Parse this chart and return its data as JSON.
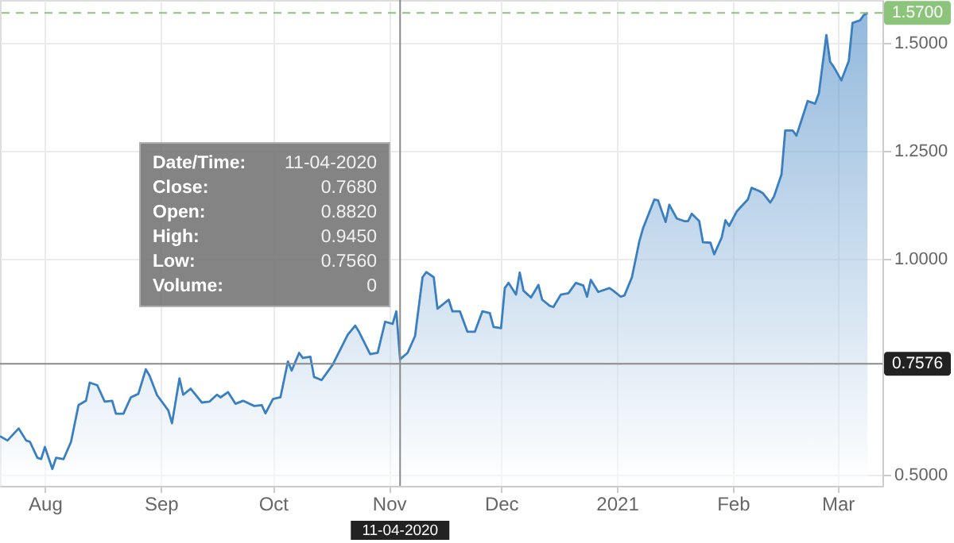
{
  "chart_data": {
    "type": "area",
    "x": [
      "2020-07-20",
      "2020-07-22",
      "2020-07-25",
      "2020-07-27",
      "2020-07-28",
      "2020-07-30",
      "2020-07-31",
      "2020-08-01",
      "2020-08-03",
      "2020-08-04",
      "2020-08-06",
      "2020-08-08",
      "2020-08-10",
      "2020-08-12",
      "2020-08-13",
      "2020-08-15",
      "2020-08-17",
      "2020-08-19",
      "2020-08-20",
      "2020-08-22",
      "2020-08-24",
      "2020-08-26",
      "2020-08-28",
      "2020-08-29",
      "2020-08-31",
      "2020-09-03",
      "2020-09-04",
      "2020-09-06",
      "2020-09-07",
      "2020-09-09",
      "2020-09-12",
      "2020-09-14",
      "2020-09-16",
      "2020-09-17",
      "2020-09-19",
      "2020-09-21",
      "2020-09-23",
      "2020-09-26",
      "2020-09-28",
      "2020-09-29",
      "2020-10-01",
      "2020-10-03",
      "2020-10-05",
      "2020-10-06",
      "2020-10-08",
      "2020-10-09",
      "2020-10-11",
      "2020-10-12",
      "2020-10-14",
      "2020-10-17",
      "2020-10-21",
      "2020-10-23",
      "2020-10-24",
      "2020-10-27",
      "2020-10-29",
      "2020-10-31",
      "2020-11-02",
      "2020-11-03",
      "2020-11-04",
      "2020-11-06",
      "2020-11-08",
      "2020-11-10",
      "2020-11-11",
      "2020-11-13",
      "2020-11-14",
      "2020-11-17",
      "2020-11-18",
      "2020-11-20",
      "2020-11-22",
      "2020-11-24",
      "2020-11-26",
      "2020-11-28",
      "2020-11-29",
      "2020-12-01",
      "2020-12-02",
      "2020-12-03",
      "2020-12-05",
      "2020-12-06",
      "2020-12-07",
      "2020-12-09",
      "2020-12-11",
      "2020-12-12",
      "2020-12-14",
      "2020-12-15",
      "2020-12-17",
      "2020-12-19",
      "2020-12-21",
      "2020-12-23",
      "2020-12-24",
      "2020-12-25",
      "2020-12-27",
      "2020-12-30",
      "2020-12-31",
      "2021-01-02",
      "2021-01-03",
      "2021-01-05",
      "2021-01-07",
      "2021-01-08",
      "2021-01-11",
      "2021-01-12",
      "2021-01-14",
      "2021-01-15",
      "2021-01-17",
      "2021-01-19",
      "2021-01-20",
      "2021-01-21",
      "2021-01-23",
      "2021-01-24",
      "2021-01-26",
      "2021-01-27",
      "2021-01-29",
      "2021-01-30",
      "2021-01-31",
      "2021-02-02",
      "2021-02-04",
      "2021-02-05",
      "2021-02-06",
      "2021-02-08",
      "2021-02-09",
      "2021-02-11",
      "2021-02-12",
      "2021-02-14",
      "2021-02-15",
      "2021-02-17",
      "2021-02-18",
      "2021-02-20",
      "2021-02-21",
      "2021-02-23",
      "2021-02-24",
      "2021-02-26",
      "2021-02-27",
      "2021-02-28",
      "2021-03-02",
      "2021-03-04",
      "2021-03-05",
      "2021-03-07",
      "2021-03-08",
      "2021-03-09"
    ],
    "series": [
      {
        "color": "#3a7fc0",
        "values": [
          0.59,
          0.58,
          0.608,
          0.58,
          0.577,
          0.54,
          0.537,
          0.565,
          0.514,
          0.54,
          0.537,
          0.577,
          0.662,
          0.672,
          0.714,
          0.708,
          0.67,
          0.672,
          0.642,
          0.642,
          0.68,
          0.688,
          0.745,
          0.73,
          0.685,
          0.65,
          0.62,
          0.724,
          0.686,
          0.7,
          0.668,
          0.67,
          0.686,
          0.68,
          0.692,
          0.665,
          0.672,
          0.66,
          0.662,
          0.643,
          0.676,
          0.68,
          0.763,
          0.742,
          0.783,
          0.771,
          0.774,
          0.727,
          0.72,
          0.756,
          0.825,
          0.846,
          0.832,
          0.78,
          0.783,
          0.855,
          0.85,
          0.879,
          0.768,
          0.783,
          0.822,
          0.958,
          0.97,
          0.958,
          0.885,
          0.906,
          0.879,
          0.879,
          0.832,
          0.832,
          0.879,
          0.875,
          0.843,
          0.84,
          0.933,
          0.945,
          0.918,
          0.969,
          0.927,
          0.911,
          0.94,
          0.906,
          0.892,
          0.889,
          0.918,
          0.921,
          0.945,
          0.939,
          0.913,
          0.952,
          0.924,
          0.933,
          0.927,
          0.913,
          0.916,
          0.958,
          1.042,
          1.072,
          1.138,
          1.136,
          1.086,
          1.126,
          1.094,
          1.088,
          1.088,
          1.105,
          1.088,
          1.039,
          1.038,
          1.011,
          1.05,
          1.09,
          1.077,
          1.11,
          1.129,
          1.138,
          1.165,
          1.158,
          1.153,
          1.131,
          1.145,
          1.196,
          1.298,
          1.298,
          1.286,
          1.339,
          1.366,
          1.36,
          1.384,
          1.519,
          1.457,
          1.445,
          1.414,
          1.459,
          1.547,
          1.553,
          1.565,
          1.57
        ]
      }
    ],
    "xlim": [
      "2020-07-20",
      "2021-03-13"
    ],
    "xticks": [
      {
        "value": "2020-08-01",
        "label": "Aug"
      },
      {
        "value": "2020-09-01",
        "label": "Sep"
      },
      {
        "value": "2020-10-01",
        "label": "Oct"
      },
      {
        "value": "2020-11-01",
        "label": "Nov"
      },
      {
        "value": "2020-12-01",
        "label": "Dec"
      },
      {
        "value": "2021-01-01",
        "label": "2021"
      },
      {
        "value": "2021-02-01",
        "label": "Feb"
      },
      {
        "value": "2021-03-01",
        "label": "Mar"
      }
    ],
    "ylim": [
      0.475,
      1.6
    ],
    "yticks": [
      {
        "value": 0.5,
        "label": "0.5000"
      },
      {
        "value": 1.0,
        "label": "1.0000"
      },
      {
        "value": 1.25,
        "label": "1.2500"
      },
      {
        "value": 1.5,
        "label": "1.5000"
      }
    ],
    "grid": true,
    "ref_lines": [
      {
        "axis": "y",
        "value": 1.57,
        "label": "1.5700",
        "color": "#8bc47a",
        "line_style": "dashed"
      },
      {
        "axis": "y",
        "value": 0.7576,
        "label": "0.7576",
        "color": "#8a8a8a",
        "line_style": "solid"
      },
      {
        "axis": "x",
        "value": "2020-11-04",
        "label": "11-04-2020",
        "color": "#8a8a8a",
        "line_style": "solid"
      }
    ],
    "annotations": [
      "Date/Time: 11-04-2020",
      "Close: 0.7680",
      "Open: 0.8820",
      "High: 0.9450",
      "Low: 0.7560",
      "Volume: 0"
    ]
  }
}
